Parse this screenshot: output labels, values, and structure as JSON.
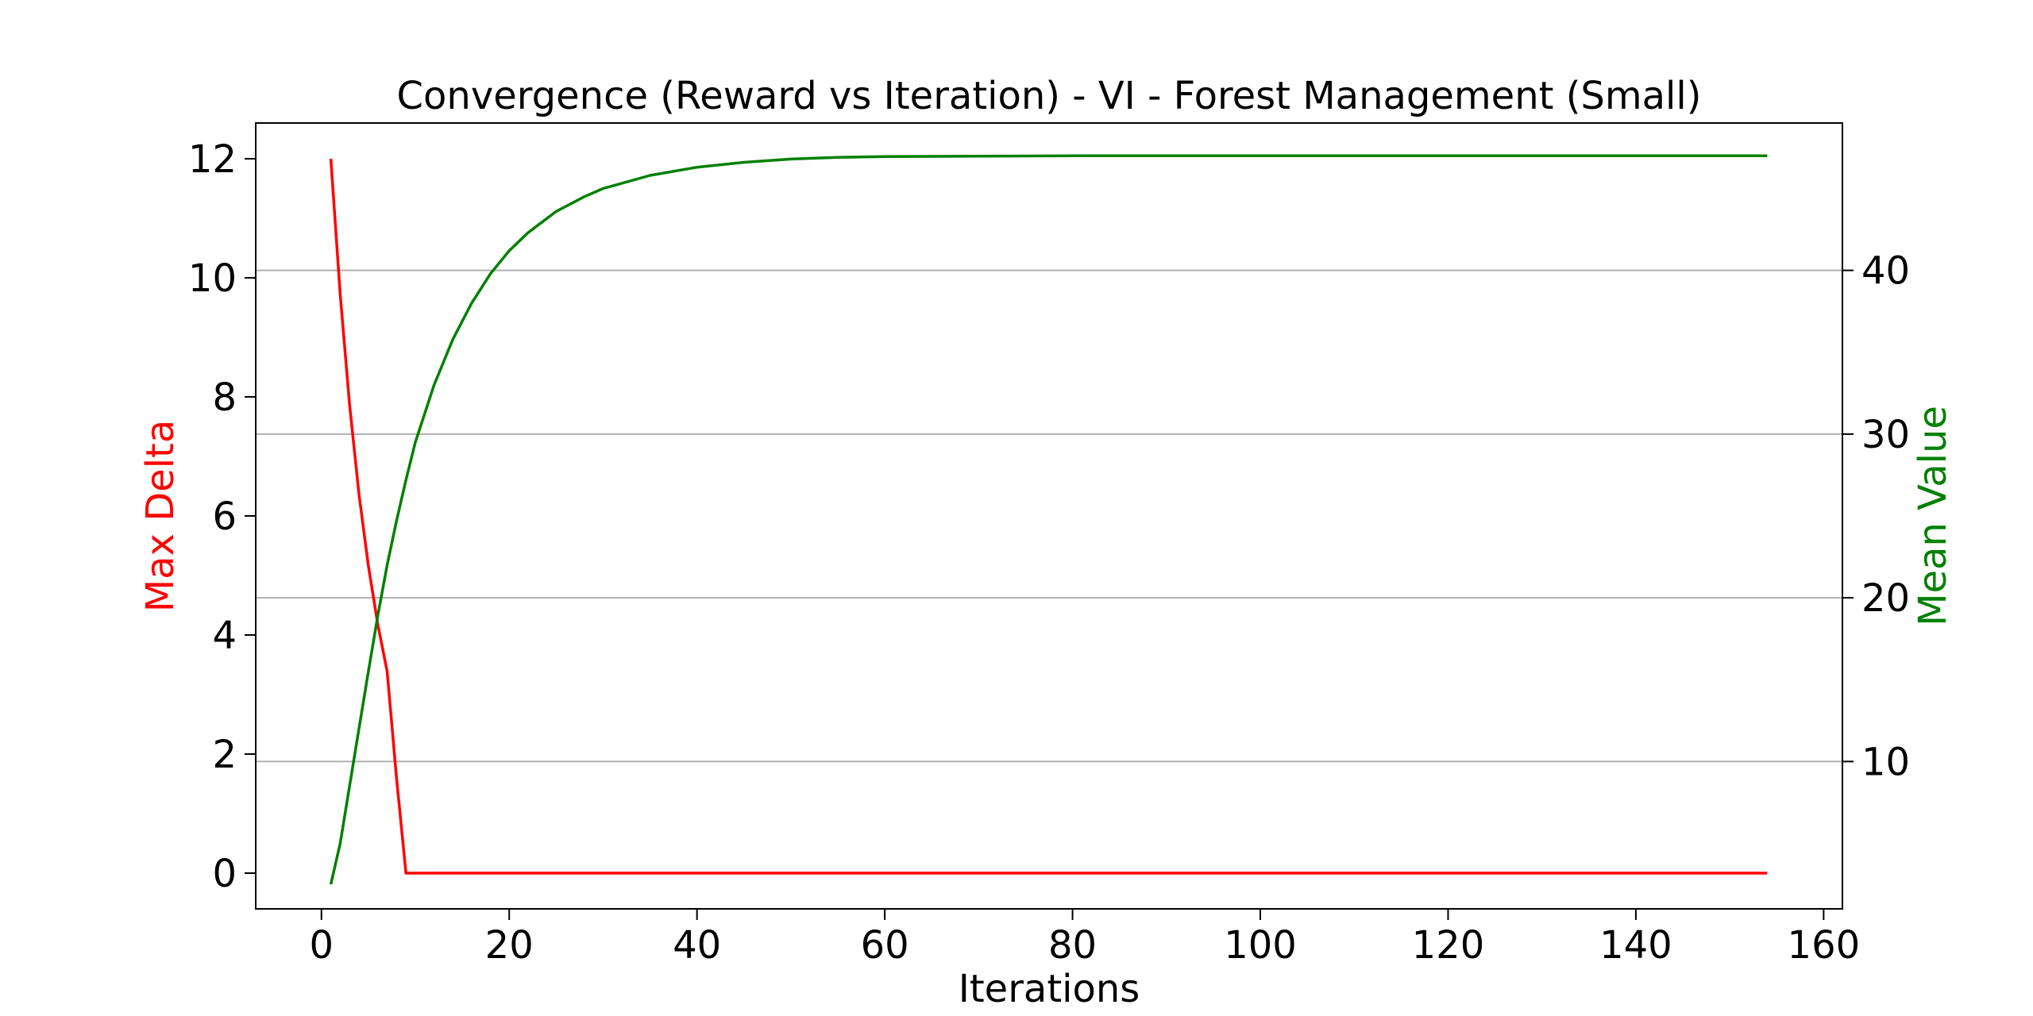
{
  "chart_data": {
    "type": "line",
    "title": "Convergence (Reward vs Iteration) - VI - Forest Management (Small)",
    "xlabel": "Iterations",
    "ylabel_left": "Max Delta",
    "ylabel_right": "Mean Value",
    "xlim": [
      -7,
      162
    ],
    "ylim_left": [
      -0.6,
      12.6
    ],
    "ylim_right": [
      1.0,
      49.0
    ],
    "x_ticks": [
      0,
      20,
      40,
      60,
      80,
      100,
      120,
      140,
      160
    ],
    "y_left_ticks": [
      0,
      2,
      4,
      6,
      8,
      10,
      12
    ],
    "y_right_ticks": [
      10,
      20,
      30,
      40
    ],
    "grid": "horizontal, right axis",
    "colors": {
      "max_delta": "#ff0000",
      "mean_value": "#008000"
    },
    "series": [
      {
        "name": "Max Delta",
        "axis": "left",
        "x": [
          1,
          2,
          3,
          4,
          5,
          6,
          7,
          8,
          9,
          10,
          154
        ],
        "values": [
          12.0,
          9.72,
          7.87,
          6.37,
          5.16,
          4.18,
          3.39,
          1.6,
          0.0,
          0.0,
          0.0
        ]
      },
      {
        "name": "Mean Value",
        "axis": "right",
        "x": [
          1,
          2,
          3,
          4,
          5,
          6,
          7,
          8,
          9,
          10,
          12,
          14,
          16,
          18,
          20,
          22,
          25,
          28,
          30,
          35,
          40,
          45,
          50,
          55,
          60,
          70,
          80,
          100,
          120,
          154
        ],
        "values": [
          2.5,
          5.0,
          8.5,
          12.0,
          15.5,
          18.9,
          22.0,
          24.7,
          27.2,
          29.5,
          33.0,
          35.8,
          38.0,
          39.8,
          41.2,
          42.3,
          43.6,
          44.5,
          45.0,
          45.8,
          46.3,
          46.6,
          46.8,
          46.9,
          46.95,
          46.98,
          47.0,
          47.0,
          47.0,
          47.0
        ]
      }
    ]
  }
}
